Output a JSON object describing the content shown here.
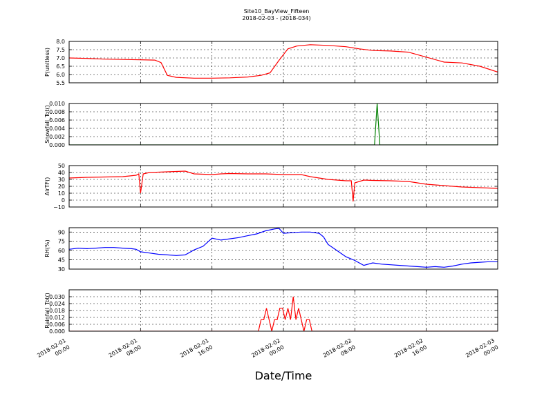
{
  "figure": {
    "title_line1": "Site10_BayView_Fifteen",
    "title_line2": "2018-02-03 - (2018-034)",
    "xlabel": "Date/Time"
  },
  "chart_data": [
    {
      "type": "line",
      "ylabel": "P(unitless)",
      "color": "#ff0000",
      "ylim": [
        5.5,
        8.0
      ],
      "yticks": [
        5.5,
        6.0,
        6.5,
        7.0,
        7.5,
        8.0
      ],
      "ytick_labels": [
        "5.5",
        "6.0",
        "6.5",
        "7.0",
        "7.5",
        "8.0"
      ],
      "x": [
        0,
        2,
        4,
        6,
        8,
        9.6,
        10.3,
        11,
        12,
        14,
        16,
        18,
        20,
        21.5,
        22.5,
        23.5,
        24.5,
        25.5,
        27,
        29,
        31,
        32.5,
        34,
        36,
        38,
        40,
        42,
        44,
        46,
        48
      ],
      "values": [
        7.0,
        6.97,
        6.93,
        6.91,
        6.89,
        6.87,
        6.72,
        5.95,
        5.83,
        5.78,
        5.78,
        5.8,
        5.85,
        5.95,
        6.1,
        6.85,
        7.55,
        7.72,
        7.8,
        7.76,
        7.68,
        7.55,
        7.45,
        7.42,
        7.35,
        7.05,
        6.75,
        6.7,
        6.5,
        6.15
      ]
    },
    {
      "type": "line",
      "ylabel": "Snowfall_Tot()",
      "color": "#008000",
      "ylim": [
        0.0,
        0.01
      ],
      "yticks": [
        0.0,
        0.002,
        0.004,
        0.006,
        0.008,
        0.01
      ],
      "ytick_labels": [
        "0.000",
        "0.002",
        "0.004",
        "0.006",
        "0.008",
        "0.010"
      ],
      "x": [
        0,
        34.2,
        34.5,
        34.8,
        48
      ],
      "values": [
        0,
        0,
        0.01,
        0,
        0
      ]
    },
    {
      "type": "line",
      "ylabel": "AirTF()",
      "color": "#ff0000",
      "ylim": [
        -10,
        50
      ],
      "yticks": [
        -10,
        0,
        10,
        20,
        30,
        40,
        50
      ],
      "ytick_labels": [
        "−10",
        "0",
        "10",
        "20",
        "30",
        "40",
        "50"
      ],
      "x": [
        0,
        2,
        4,
        6,
        7.5,
        7.8,
        8.0,
        8.3,
        9,
        10,
        11,
        12,
        13,
        14,
        16,
        17,
        18,
        20,
        22,
        24,
        26,
        27,
        28,
        29,
        30,
        31,
        31.6,
        31.8,
        32.0,
        33,
        34,
        36,
        38,
        40,
        42,
        44,
        46,
        48
      ],
      "values": [
        32,
        33,
        33.5,
        34,
        36,
        38,
        10,
        38,
        40,
        40.5,
        41,
        41.5,
        42,
        38,
        37,
        38,
        38.5,
        38,
        38,
        37,
        37,
        34,
        32,
        30,
        29,
        28,
        28,
        -2,
        25,
        29,
        28.5,
        28,
        27,
        23,
        21,
        19,
        18,
        17
      ]
    },
    {
      "type": "line",
      "ylabel": "RH(%)",
      "color": "#0000ff",
      "ylim": [
        30,
        97
      ],
      "yticks": [
        30,
        45,
        60,
        75,
        90
      ],
      "ytick_labels": [
        "30",
        "45",
        "60",
        "75",
        "90"
      ],
      "x": [
        0,
        1,
        2,
        3,
        4,
        5,
        6,
        7,
        7.5,
        8,
        9,
        10,
        11,
        12,
        13,
        14,
        15,
        16,
        17,
        18,
        19,
        20,
        21,
        22,
        23,
        23.5,
        24,
        25,
        26,
        27,
        28,
        28.5,
        29,
        30,
        31,
        32,
        33,
        34,
        35,
        36,
        37,
        38,
        39,
        40,
        41,
        42,
        43,
        44,
        45,
        46,
        47,
        48
      ],
      "values": [
        62,
        64,
        63,
        64,
        65,
        65,
        64,
        63,
        62,
        58,
        56,
        54,
        53,
        52,
        53,
        61,
        67,
        80,
        77,
        79,
        81,
        84,
        87,
        92,
        95,
        96,
        88,
        89,
        90,
        90,
        88,
        82,
        70,
        60,
        50,
        44,
        36,
        40,
        38,
        37,
        36,
        35,
        34,
        33,
        34,
        33,
        35,
        38,
        40,
        41,
        42,
        42
      ]
    },
    {
      "type": "line",
      "ylabel": "Rainfall_Tot()",
      "color": "#ff0000",
      "ylim": [
        0,
        0.036
      ],
      "yticks": [
        0.0,
        0.006,
        0.012,
        0.018,
        0.024,
        0.03
      ],
      "ytick_labels": [
        "0.000",
        "0.006",
        "0.012",
        "0.018",
        "0.024",
        "0.030"
      ],
      "x": [
        0,
        21.2,
        21.5,
        21.8,
        22.1,
        22.4,
        22.7,
        23.0,
        23.3,
        23.6,
        23.9,
        24.2,
        24.5,
        24.8,
        25.1,
        25.4,
        25.7,
        26.0,
        26.3,
        26.6,
        26.9,
        27.2,
        48
      ],
      "values": [
        0,
        0,
        0.01,
        0.01,
        0.02,
        0.01,
        0,
        0.01,
        0.01,
        0.02,
        0.02,
        0.01,
        0.02,
        0.01,
        0.03,
        0.01,
        0.02,
        0.01,
        0,
        0.01,
        0.01,
        0,
        0
      ]
    }
  ],
  "xaxis": {
    "range_hours": [
      0,
      48
    ],
    "ticks_hours": [
      0,
      8,
      16,
      24,
      32,
      40,
      48
    ],
    "tick_labels_line1": [
      "2018-02-01",
      "2018-02-01",
      "2018-02-01",
      "2018-02-02",
      "2018-02-02",
      "2018-02-02",
      "2018-02-03"
    ],
    "tick_labels_line2": [
      "00:00",
      "08:00",
      "16:00",
      "00:00",
      "08:00",
      "16:00",
      "00:00"
    ]
  }
}
